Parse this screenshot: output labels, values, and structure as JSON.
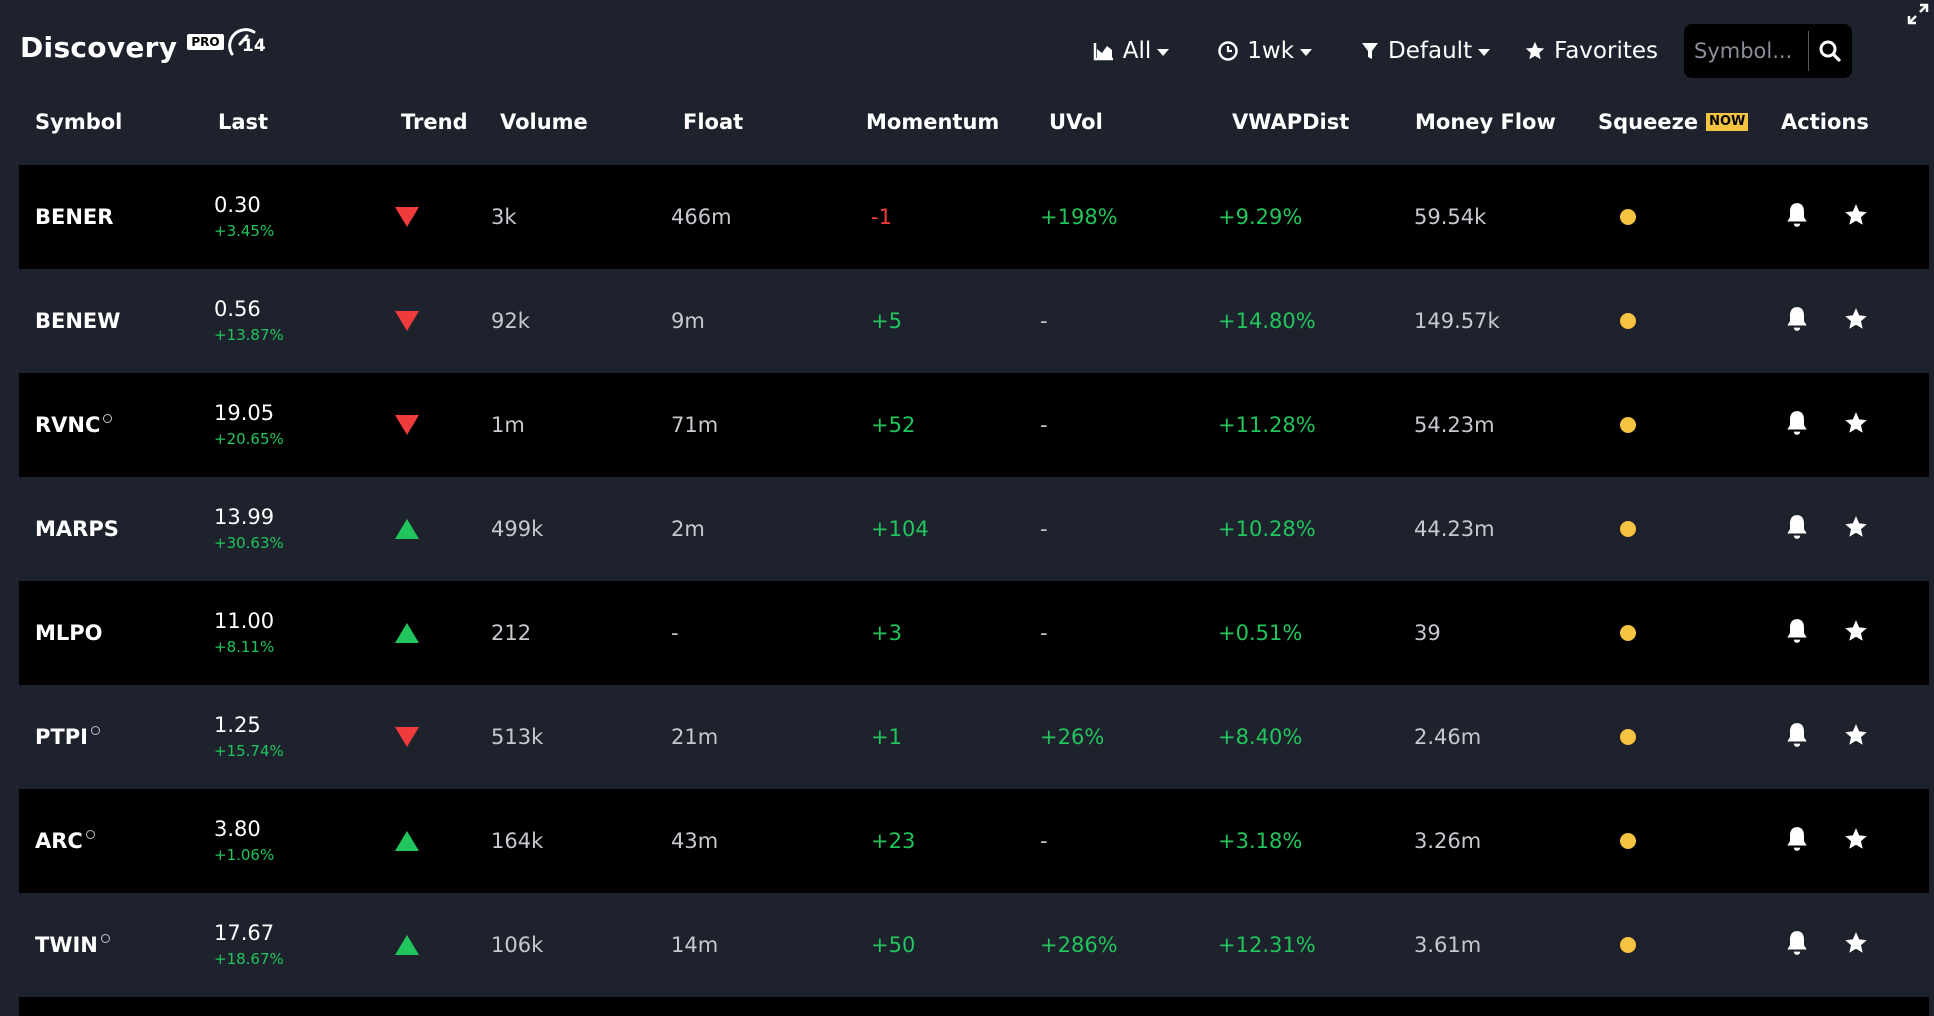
{
  "header": {
    "title": "Discovery",
    "pro_badge": "PRO",
    "gauge_count": "14",
    "filter_all": "All",
    "filter_time": "1wk",
    "filter_preset": "Default",
    "favorites": "Favorites",
    "search_placeholder": "Symbol..."
  },
  "columns": {
    "symbol": "Symbol",
    "last": "Last",
    "trend": "Trend",
    "volume": "Volume",
    "float": "Float",
    "momentum": "Momentum",
    "uvol": "UVol",
    "vwapdist": "VWAPDist",
    "money_flow": "Money Flow",
    "squeeze": "Squeeze",
    "squeeze_badge": "NOW",
    "actions": "Actions"
  },
  "colors": {
    "background": "#1e222d",
    "row_alt": "#000000",
    "up": "#21c55d",
    "down": "#ef3b3b",
    "squeeze_dot": "#f5c342"
  },
  "icons": {
    "trend_down": "triangle-down-icon",
    "trend_up": "triangle-up-icon",
    "alert": "bell-icon",
    "favorite": "star-icon",
    "squeeze": "dot-icon"
  },
  "rows": [
    {
      "symbol": "BENER",
      "ring": false,
      "last": "0.30",
      "change": "+3.45%",
      "trend": "down",
      "volume": "3k",
      "float": "466m",
      "momentum": "-1",
      "momentum_dir": "down",
      "uvol": "+198%",
      "vwapdist": "+9.29%",
      "money_flow": "59.54k"
    },
    {
      "symbol": "BENEW",
      "ring": false,
      "last": "0.56",
      "change": "+13.87%",
      "trend": "down",
      "volume": "92k",
      "float": "9m",
      "momentum": "+5",
      "momentum_dir": "up",
      "uvol": "-",
      "vwapdist": "+14.80%",
      "money_flow": "149.57k"
    },
    {
      "symbol": "RVNC",
      "ring": true,
      "last": "19.05",
      "change": "+20.65%",
      "trend": "down",
      "volume": "1m",
      "float": "71m",
      "momentum": "+52",
      "momentum_dir": "up",
      "uvol": "-",
      "vwapdist": "+11.28%",
      "money_flow": "54.23m"
    },
    {
      "symbol": "MARPS",
      "ring": false,
      "last": "13.99",
      "change": "+30.63%",
      "trend": "up",
      "volume": "499k",
      "float": "2m",
      "momentum": "+104",
      "momentum_dir": "up",
      "uvol": "-",
      "vwapdist": "+10.28%",
      "money_flow": "44.23m"
    },
    {
      "symbol": "MLPO",
      "ring": false,
      "last": "11.00",
      "change": "+8.11%",
      "trend": "up",
      "volume": "212",
      "float": "-",
      "momentum": "+3",
      "momentum_dir": "up",
      "uvol": "-",
      "vwapdist": "+0.51%",
      "money_flow": "39"
    },
    {
      "symbol": "PTPI",
      "ring": true,
      "last": "1.25",
      "change": "+15.74%",
      "trend": "down",
      "volume": "513k",
      "float": "21m",
      "momentum": "+1",
      "momentum_dir": "up",
      "uvol": "+26%",
      "vwapdist": "+8.40%",
      "money_flow": "2.46m"
    },
    {
      "symbol": "ARC",
      "ring": true,
      "last": "3.80",
      "change": "+1.06%",
      "trend": "up",
      "volume": "164k",
      "float": "43m",
      "momentum": "+23",
      "momentum_dir": "up",
      "uvol": "-",
      "vwapdist": "+3.18%",
      "money_flow": "3.26m"
    },
    {
      "symbol": "TWIN",
      "ring": true,
      "last": "17.67",
      "change": "+18.67%",
      "trend": "up",
      "volume": "106k",
      "float": "14m",
      "momentum": "+50",
      "momentum_dir": "up",
      "uvol": "+286%",
      "vwapdist": "+12.31%",
      "money_flow": "3.61m"
    }
  ]
}
